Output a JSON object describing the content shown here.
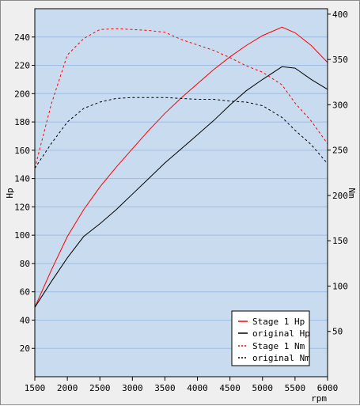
{
  "chart_data": {
    "type": "line",
    "xlabel": "rpm",
    "ylabel": "Hp",
    "y2label": "Nm",
    "xlim": [
      1500,
      6000
    ],
    "ylim": [
      0,
      260
    ],
    "y2lim": [
      0,
      406
    ],
    "xticks": [
      1500,
      2000,
      2500,
      3000,
      3500,
      4000,
      4500,
      5000,
      5500,
      6000
    ],
    "yticks": [
      20,
      40,
      60,
      80,
      100,
      120,
      140,
      160,
      180,
      200,
      220,
      240
    ],
    "y2ticks": [
      50,
      100,
      150,
      200,
      250,
      300,
      350,
      400
    ],
    "grid": "horizontal",
    "legend_position": "bottom-right",
    "series": [
      {
        "name": "Stage 1 Hp",
        "axis": "left",
        "color": "#ff0000",
        "dashed": false,
        "points": [
          [
            1500,
            49
          ],
          [
            1750,
            75
          ],
          [
            2000,
            99
          ],
          [
            2250,
            118
          ],
          [
            2500,
            134
          ],
          [
            2750,
            148
          ],
          [
            3000,
            161
          ],
          [
            3250,
            174
          ],
          [
            3500,
            186
          ],
          [
            3750,
            197
          ],
          [
            4000,
            207
          ],
          [
            4250,
            217
          ],
          [
            4500,
            226
          ],
          [
            4750,
            234
          ],
          [
            5000,
            241
          ],
          [
            5300,
            247
          ],
          [
            5500,
            243
          ],
          [
            5750,
            234
          ],
          [
            6000,
            222
          ]
        ]
      },
      {
        "name": "original Hp",
        "axis": "left",
        "color": "#000000",
        "dashed": false,
        "points": [
          [
            1500,
            49
          ],
          [
            1750,
            67
          ],
          [
            2000,
            84
          ],
          [
            2250,
            99
          ],
          [
            2500,
            108
          ],
          [
            2750,
            118
          ],
          [
            3000,
            129
          ],
          [
            3250,
            140
          ],
          [
            3500,
            151
          ],
          [
            3750,
            161
          ],
          [
            4000,
            171
          ],
          [
            4250,
            181
          ],
          [
            4500,
            192
          ],
          [
            4750,
            202
          ],
          [
            5000,
            210
          ],
          [
            5300,
            219
          ],
          [
            5500,
            218
          ],
          [
            5750,
            210
          ],
          [
            6000,
            203
          ]
        ]
      },
      {
        "name": "Stage 1 Nm",
        "axis": "right",
        "color": "#ff0000",
        "dashed": true,
        "points": [
          [
            1500,
            230
          ],
          [
            1750,
            300
          ],
          [
            2000,
            355
          ],
          [
            2250,
            373
          ],
          [
            2500,
            383
          ],
          [
            2750,
            384
          ],
          [
            3000,
            383
          ],
          [
            3250,
            382
          ],
          [
            3500,
            380
          ],
          [
            3750,
            372
          ],
          [
            4000,
            366
          ],
          [
            4250,
            360
          ],
          [
            4500,
            352
          ],
          [
            4750,
            343
          ],
          [
            5000,
            336
          ],
          [
            5300,
            322
          ],
          [
            5500,
            302
          ],
          [
            5750,
            282
          ],
          [
            6000,
            257
          ]
        ]
      },
      {
        "name": "original Nm",
        "axis": "right",
        "color": "#000000",
        "dashed": true,
        "points": [
          [
            1500,
            230
          ],
          [
            1750,
            257
          ],
          [
            2000,
            281
          ],
          [
            2250,
            296
          ],
          [
            2500,
            303
          ],
          [
            2750,
            307
          ],
          [
            3000,
            308
          ],
          [
            3250,
            308
          ],
          [
            3500,
            308
          ],
          [
            3750,
            307
          ],
          [
            4000,
            306
          ],
          [
            4250,
            306
          ],
          [
            4500,
            304
          ],
          [
            4750,
            303
          ],
          [
            5000,
            299
          ],
          [
            5300,
            286
          ],
          [
            5500,
            272
          ],
          [
            5750,
            256
          ],
          [
            6000,
            235
          ]
        ]
      }
    ]
  }
}
